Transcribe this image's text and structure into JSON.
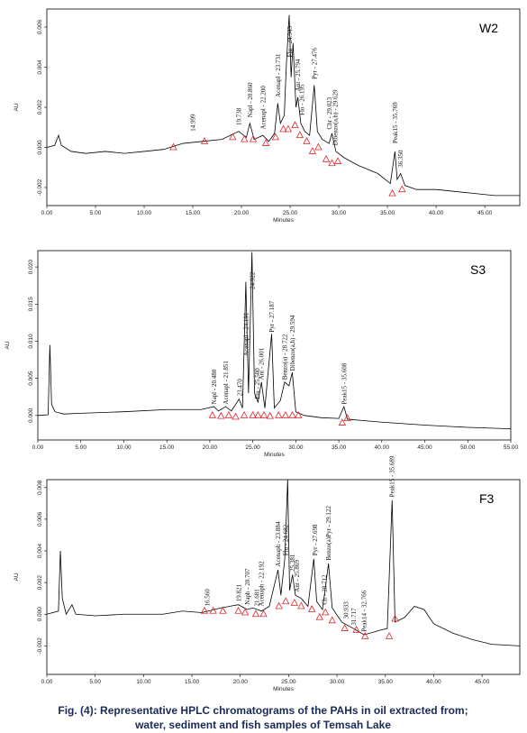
{
  "chart_data": [
    {
      "type": "line",
      "label": "W2",
      "x_label": "Minutes",
      "y_label": "AU",
      "color": "#000000",
      "xlim": [
        0,
        48.6
      ],
      "ylim": [
        -0.0029,
        0.0069
      ],
      "xticks": [
        {
          "value": 0,
          "label": "0.00"
        },
        {
          "value": 5,
          "label": "5.00"
        },
        {
          "value": 10,
          "label": "10.00"
        },
        {
          "value": 15,
          "label": "15.00"
        },
        {
          "value": 20,
          "label": "20.00"
        },
        {
          "value": 25,
          "label": "25.00"
        },
        {
          "value": 30,
          "label": "30.00"
        },
        {
          "value": 35,
          "label": "35.00"
        },
        {
          "value": 40,
          "label": "40.00"
        },
        {
          "value": 45,
          "label": "45.00"
        }
      ],
      "yticks": [
        -0.002,
        {
          "value": 0,
          "label": "0.000"
        },
        0.002,
        0.004,
        0.006
      ],
      "x": [
        0,
        0.8,
        1.2,
        1.5,
        2.5,
        4,
        6,
        8,
        10,
        12,
        14,
        16,
        18,
        19.7,
        20.5,
        20.86,
        21.3,
        22.2,
        22.8,
        23.4,
        23.73,
        24.0,
        24.4,
        24.6,
        24.9,
        25.1,
        25.3,
        25.6,
        25.79,
        26.1,
        26.5,
        27.0,
        27.476,
        27.8,
        28.3,
        29.0,
        29.3,
        29.7,
        30.5,
        32,
        34,
        35.3,
        35.77,
        36.0,
        36.35,
        36.8,
        38,
        40,
        42,
        44,
        46,
        48.6
      ],
      "values": [
        0,
        0.0001,
        0.0006,
        0.0001,
        -0.0002,
        -0.0003,
        -0.0002,
        -0.0003,
        -0.0002,
        -0.0001,
        0.0002,
        0.0003,
        0.0004,
        0.0008,
        0.0005,
        0.0012,
        0.0004,
        0.0006,
        0.0003,
        0.0007,
        0.0022,
        0.0012,
        0.0016,
        0.004,
        0.0066,
        0.0035,
        0.0052,
        0.002,
        0.0025,
        0.0012,
        0.0008,
        0.0006,
        0.0031,
        0.0008,
        0.0004,
        0.0002,
        0.0007,
        -0.0002,
        -0.0005,
        -0.0009,
        -0.0013,
        -0.0018,
        -0.0002,
        -0.0016,
        -0.0013,
        -0.0019,
        -0.0021,
        -0.0021,
        -0.0022,
        -0.0023,
        -0.0024,
        -0.0024
      ],
      "markers": {
        "color": "#e0242c",
        "x": [
          13,
          16.2,
          19.1,
          20.3,
          21.2,
          22.5,
          23.5,
          24.3,
          24.8,
          25.5,
          26.0,
          26.7,
          27.3,
          27.9,
          28.7,
          29.3,
          29.9,
          35.5,
          36.5
        ],
        "y": [
          0.0,
          0.0003,
          0.0005,
          0.0004,
          0.0004,
          0.0002,
          0.0005,
          0.0009,
          0.0009,
          0.0011,
          0.0006,
          0.0003,
          -0.0002,
          0.0,
          -0.0006,
          -0.0008,
          -0.0007,
          -0.0023,
          -0.0021
        ]
      },
      "annotations": [
        {
          "text": "14.999",
          "x": 15.0,
          "y": 0.0008
        },
        {
          "text": "19.738",
          "x": 19.74,
          "y": 0.0011
        },
        {
          "text": "Napl - 20.860",
          "x": 20.86,
          "y": 0.0015
        },
        {
          "text": "Acenapl - 22.200",
          "x": 22.2,
          "y": 0.0009
        },
        {
          "text": "Acenapl - 23.731",
          "x": 23.73,
          "y": 0.0025
        },
        {
          "text": "Flu - 24.943",
          "x": 24.94,
          "y": 0.0045
        },
        {
          "text": "Ant - 25.794",
          "x": 25.79,
          "y": 0.0028
        },
        {
          "text": "Flo - 26.195",
          "x": 26.2,
          "y": 0.0016
        },
        {
          "text": "Pyr - 27.476",
          "x": 27.48,
          "y": 0.0034
        },
        {
          "text": "Chr - 29.023",
          "x": 29.02,
          "y": 0.0009
        },
        {
          "text": "Dibenzo(a,h) - 29.629",
          "x": 29.63,
          "y": 0.0001
        },
        {
          "text": "Peak15 - 35.769",
          "x": 35.77,
          "y": 0.0002
        },
        {
          "text": "36.350",
          "x": 36.35,
          "y": -0.001
        }
      ]
    },
    {
      "type": "line",
      "label": "S3",
      "x_label": "Minutes",
      "y_label": "AU",
      "color": "#000000",
      "xlim": [
        0,
        55
      ],
      "ylim": [
        -0.0033,
        0.0222
      ],
      "xticks": [
        {
          "value": 0,
          "label": "0.00"
        },
        {
          "value": 5,
          "label": "5.00"
        },
        {
          "value": 10,
          "label": "10.00"
        },
        {
          "value": 15,
          "label": "15.00"
        },
        {
          "value": 20,
          "label": "20.00"
        },
        {
          "value": 25,
          "label": "25.00"
        },
        {
          "value": 30,
          "label": "30.00"
        },
        {
          "value": 35,
          "label": "35.00"
        },
        {
          "value": 40,
          "label": "40.00"
        },
        {
          "value": 45,
          "label": "45.00"
        },
        {
          "value": 50,
          "label": "50.00"
        },
        {
          "value": 55,
          "label": "55.00"
        }
      ],
      "yticks": [
        {
          "value": 0,
          "label": "0.000"
        },
        0.005,
        {
          "value": 0.01,
          "label": "0.010"
        },
        0.015,
        {
          "value": 0.02,
          "label": "0.020"
        }
      ],
      "x": [
        0,
        1.2,
        1.4,
        1.6,
        2.0,
        3,
        5,
        10,
        15,
        19,
        20.48,
        21,
        21.85,
        22.5,
        23.4,
        23.8,
        24.19,
        24.5,
        24.9,
        25.2,
        25.6,
        26.0,
        26.4,
        27.19,
        27.5,
        28.2,
        28.7,
        29.2,
        29.59,
        30,
        31,
        33,
        35,
        35.6,
        36,
        38,
        40,
        45,
        50,
        55
      ],
      "values": [
        0,
        0.0001,
        0.0095,
        0.0015,
        0.0005,
        0.0002,
        0.0003,
        0.0005,
        0.0008,
        0.0008,
        0.0012,
        0.0006,
        0.0012,
        0.0006,
        0.0022,
        0.001,
        0.018,
        0.003,
        0.022,
        0.003,
        0.0018,
        0.0045,
        0.001,
        0.011,
        0.001,
        0.002,
        0.0045,
        0.004,
        0.0058,
        0.0005,
        0.0,
        -0.0003,
        -0.0004,
        0.0012,
        -0.0005,
        -0.0007,
        -0.0009,
        -0.0013,
        -0.0016,
        -0.0018
      ],
      "markers": {
        "color": "#e0242c",
        "x": [
          20.3,
          21.3,
          22.2,
          23.0,
          24.0,
          25.0,
          25.6,
          26.3,
          27.0,
          28.0,
          28.8,
          29.6,
          30.3,
          35.4,
          36.0
        ],
        "y": [
          0.0,
          -0.0001,
          0.0,
          -0.0002,
          0.0,
          0.0,
          0.0,
          0.0,
          -0.0001,
          0.0,
          0.0,
          0.0,
          0.0,
          -0.001,
          -0.0004
        ]
      },
      "annotations": [
        {
          "text": "Napl - 20.480",
          "x": 20.48,
          "y": 0.0015
        },
        {
          "text": "Acenapl - 21.851",
          "x": 21.85,
          "y": 0.0015
        },
        {
          "text": "23.470",
          "x": 23.47,
          "y": 0.0026
        },
        {
          "text": "Acenapl - 24.191",
          "x": 24.19,
          "y": 0.008
        },
        {
          "text": "24.922",
          "x": 24.92,
          "y": 0.017
        },
        {
          "text": "Flu - 25.500",
          "x": 25.5,
          "y": 0.0022
        },
        {
          "text": "Ant - 26.001",
          "x": 26.0,
          "y": 0.0048
        },
        {
          "text": "Pyr - 27.187",
          "x": 27.19,
          "y": 0.0112
        },
        {
          "text": "Benzo(a) - 28.722",
          "x": 28.72,
          "y": 0.0048
        },
        {
          "text": "Dibenzo(a,h) - 29.594",
          "x": 29.59,
          "y": 0.006
        },
        {
          "text": "Peak15 - 35.608",
          "x": 35.61,
          "y": 0.0015
        }
      ]
    },
    {
      "type": "line",
      "label": "F3",
      "x_label": "Minutes",
      "y_label": "AU",
      "color": "#000000",
      "xlim": [
        0,
        48.9
      ],
      "ylim": [
        -0.0038,
        0.0085
      ],
      "xticks": [
        {
          "value": 0,
          "label": "0.00"
        },
        {
          "value": 5,
          "label": "5.00"
        },
        {
          "value": 10,
          "label": "10.00"
        },
        {
          "value": 15,
          "label": "15.00"
        },
        {
          "value": 20,
          "label": "20.00"
        },
        {
          "value": 25,
          "label": "25.00"
        },
        {
          "value": 30,
          "label": "30.00"
        },
        {
          "value": 35,
          "label": "35.00"
        },
        {
          "value": 40,
          "label": "40.00"
        },
        {
          "value": 45,
          "label": "45.00"
        }
      ],
      "yticks": [
        -0.002,
        {
          "value": 0,
          "label": "0.000"
        },
        0.002,
        0.004,
        0.006,
        0.008
      ],
      "x": [
        0,
        1.2,
        1.4,
        1.6,
        2.0,
        2.6,
        3.0,
        5,
        8,
        10,
        12,
        14,
        16,
        18,
        19.8,
        20.7,
        21.3,
        22.2,
        23,
        23.9,
        24.2,
        24.6,
        24.9,
        25.1,
        25.4,
        25.7,
        26.3,
        27.0,
        27.6,
        27.9,
        28.5,
        29.12,
        29.5,
        30.5,
        31.7,
        32.8,
        34.5,
        35.2,
        35.7,
        36.0,
        37,
        38,
        39,
        40,
        42,
        44,
        46,
        48.9
      ],
      "values": [
        0,
        0.0002,
        0.004,
        0.001,
        0.0,
        0.0006,
        0.0,
        -0.0001,
        0.0,
        0.0,
        0.0,
        0.0002,
        0.0001,
        0.0004,
        0.0006,
        0.0003,
        0.0004,
        0.0002,
        0.0005,
        0.0028,
        0.0012,
        0.0035,
        0.0085,
        0.0015,
        0.0025,
        0.0012,
        0.001,
        0.0005,
        0.0035,
        0.0008,
        0.0003,
        0.0032,
        0.0004,
        -0.0005,
        -0.0009,
        -0.0013,
        -0.001,
        -0.0009,
        0.0072,
        -0.0005,
        -0.0002,
        0.0005,
        0.0003,
        -0.0006,
        -0.0012,
        -0.0016,
        -0.0019,
        -0.002
      ],
      "markers": {
        "color": "#e0242c",
        "x": [
          16.3,
          17.2,
          18.2,
          19.8,
          20.5,
          21.6,
          22.4,
          24.0,
          24.7,
          25.6,
          26.3,
          27.4,
          28.2,
          28.8,
          29.5,
          30.8,
          32.0,
          32.9,
          35.4,
          36.0
        ],
        "y": [
          0.0002,
          0.0002,
          0.0002,
          0.0002,
          0.0001,
          0.0,
          0.0,
          0.0005,
          0.0008,
          0.0007,
          0.0005,
          0.0003,
          -0.0002,
          0.0001,
          -0.0004,
          -0.0009,
          -0.001,
          -0.0014,
          -0.0014,
          -0.0003
        ]
      },
      "annotations": [
        {
          "text": "16.560",
          "x": 16.56,
          "y": 0.0005
        },
        {
          "text": "19.821",
          "x": 19.82,
          "y": 0.0008
        },
        {
          "text": "Naph - 20.707",
          "x": 20.71,
          "y": 0.0006
        },
        {
          "text": "21.681",
          "x": 21.68,
          "y": 0.0005
        },
        {
          "text": "Acenaph - 22.192",
          "x": 22.19,
          "y": 0.0005
        },
        {
          "text": "Acenaph - 23.884",
          "x": 23.88,
          "y": 0.003
        },
        {
          "text": "Flu - 24.682",
          "x": 24.68,
          "y": 0.0037
        },
        {
          "text": "25.381",
          "x": 25.38,
          "y": 0.0027
        },
        {
          "text": "Ant - 25.869",
          "x": 25.87,
          "y": 0.0014
        },
        {
          "text": "Pyr - 27.698",
          "x": 27.7,
          "y": 0.0037
        },
        {
          "text": "Ch - 28.712",
          "x": 28.71,
          "y": 0.0006
        },
        {
          "text": "Benzo(a)Pyr - 29.122",
          "x": 29.12,
          "y": 0.0034
        },
        {
          "text": "30.933",
          "x": 30.93,
          "y": -0.0003
        },
        {
          "text": "31.717",
          "x": 31.72,
          "y": -0.0007
        },
        {
          "text": "Peak14 - 32.766",
          "x": 32.77,
          "y": -0.0011
        },
        {
          "text": "Peak15 - 35.689",
          "x": 35.69,
          "y": 0.0074
        }
      ]
    }
  ],
  "caption": [
    "Fig. (4): Representative HPLC chromatograms of the PAHs in oil extracted from;",
    "water, sediment and fish samples of Temsah Lake"
  ]
}
